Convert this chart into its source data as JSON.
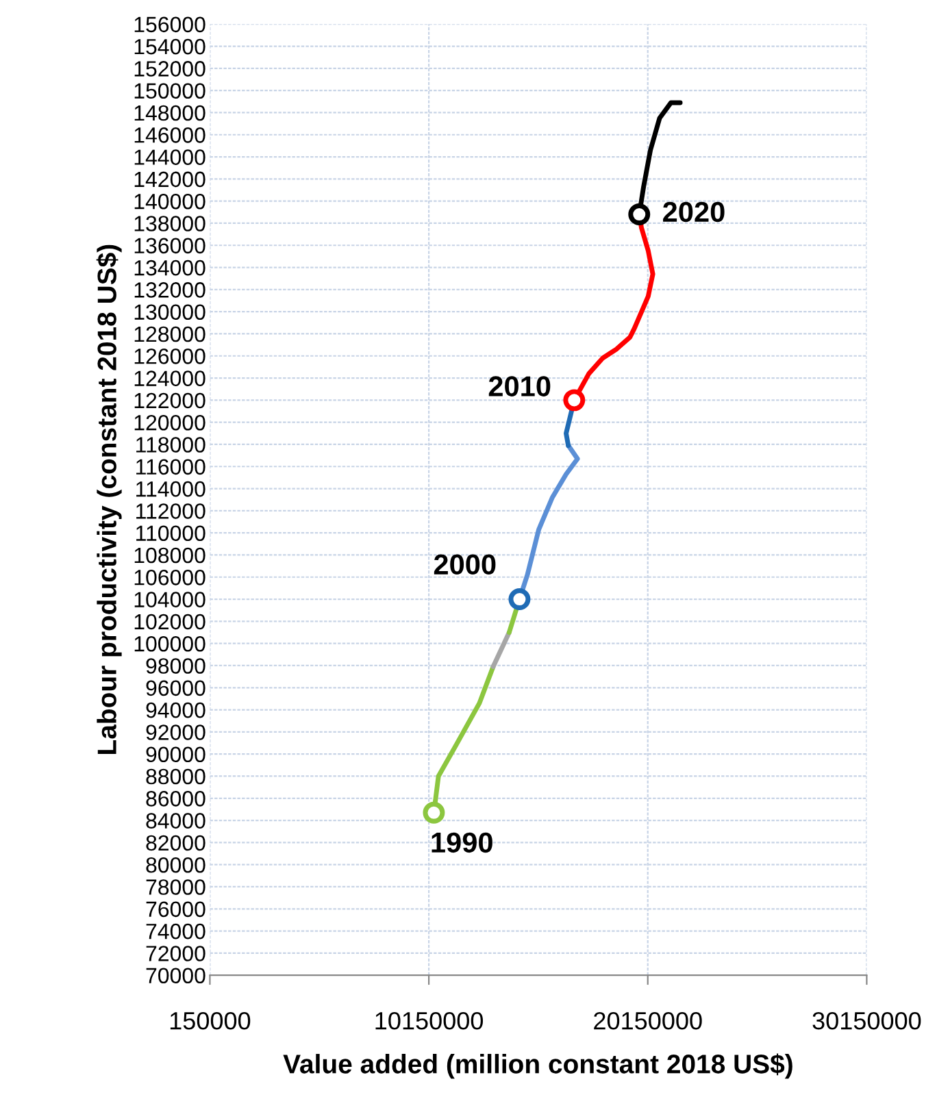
{
  "chart_data": {
    "type": "line",
    "xlabel": "Value added (million constant 2018 US$)",
    "ylabel": "Labour productivity (constant 2018 US$)",
    "xlim": [
      150000,
      30150000
    ],
    "xticks": [
      150000,
      10150000,
      20150000,
      30150000
    ],
    "ylim": [
      70000,
      156000
    ],
    "yticks": [
      70000,
      72000,
      74000,
      76000,
      78000,
      80000,
      82000,
      84000,
      86000,
      88000,
      90000,
      92000,
      94000,
      96000,
      98000,
      100000,
      102000,
      104000,
      106000,
      108000,
      110000,
      112000,
      114000,
      116000,
      118000,
      120000,
      122000,
      124000,
      126000,
      128000,
      130000,
      132000,
      134000,
      136000,
      138000,
      140000,
      142000,
      144000,
      146000,
      148000,
      150000,
      152000,
      154000,
      156000
    ],
    "grid": true,
    "line_style": "solid",
    "series": [
      {
        "color": "#8cc63f",
        "x": [
          10380000,
          10590000,
          11420000,
          12460000,
          13090000
        ],
        "values": [
          84700,
          88000,
          90900,
          94600,
          97900
        ]
      },
      {
        "color": "#a6a6a6",
        "x": [
          13090000,
          13820000
        ],
        "values": [
          97900,
          101000
        ]
      },
      {
        "color": "#8cc63f",
        "x": [
          13820000,
          14290000
        ],
        "values": [
          101000,
          104000
        ]
      },
      {
        "color": "#5b8fd6",
        "x": [
          14290000,
          14650000,
          15170000,
          15790000,
          16420000,
          16940000,
          16520000
        ],
        "values": [
          104000,
          106200,
          110300,
          113200,
          115300,
          116700,
          117900
        ]
      },
      {
        "color": "#1f6bb5",
        "x": [
          16520000,
          16420000,
          16790000
        ],
        "values": [
          117900,
          119000,
          122000
        ]
      },
      {
        "color": "#ff0000",
        "x": [
          16790000,
          17460000,
          18090000,
          18710000,
          19340000,
          19540000,
          20170000,
          20380000,
          20170000,
          19860000,
          19760000
        ],
        "values": [
          122000,
          124400,
          125800,
          126600,
          127700,
          128500,
          131400,
          133400,
          135500,
          137600,
          138800
        ]
      },
      {
        "color": "#000000",
        "x": [
          19760000,
          19960000,
          20270000,
          20690000,
          21210000,
          21630000
        ],
        "values": [
          138800,
          141300,
          144600,
          147500,
          148900,
          148900
        ]
      },
      {
        "type": "scatter",
        "marker": "circle",
        "x": [
          10380000,
          14290000,
          16790000,
          19760000
        ],
        "values": [
          84700,
          104000,
          122000,
          138800
        ],
        "colors": [
          "#8cc63f",
          "#1f6bb5",
          "#ff0000",
          "#000000"
        ]
      }
    ],
    "annotations": [
      {
        "text": "1990",
        "x": 10380000,
        "y": 84700
      },
      {
        "text": "2000",
        "x": 14290000,
        "y": 104000
      },
      {
        "text": "2010",
        "x": 16790000,
        "y": 122000
      },
      {
        "text": "2020",
        "x": 19760000,
        "y": 138800
      }
    ]
  }
}
